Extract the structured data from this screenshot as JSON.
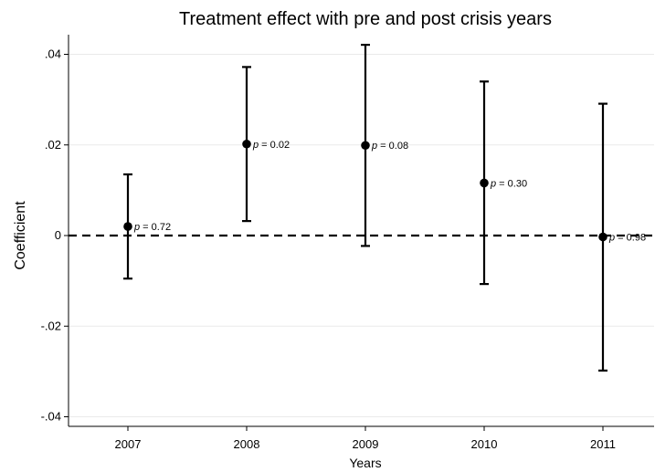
{
  "chart_data": {
    "type": "scatter",
    "title": "Treatment effect with pre and post crisis years",
    "xlabel": "Years",
    "ylabel": "Coefficient",
    "categories": [
      "2007",
      "2008",
      "2009",
      "2010",
      "2011"
    ],
    "ylim": [
      -0.042,
      0.044
    ],
    "yticks": [
      -0.04,
      -0.02,
      0,
      0.02,
      0.04
    ],
    "ytick_labels": [
      "-.04",
      "-.02",
      "0",
      ".02",
      ".04"
    ],
    "grid": true,
    "reference_line": {
      "y": 0,
      "style": "dashed"
    },
    "points": [
      {
        "x": "2007",
        "estimate": 0.002,
        "ci_low": -0.0095,
        "ci_high": 0.0135,
        "p_label": "= 0.72"
      },
      {
        "x": "2008",
        "estimate": 0.0202,
        "ci_low": 0.0032,
        "ci_high": 0.0372,
        "p_label": "= 0.02"
      },
      {
        "x": "2009",
        "estimate": 0.0199,
        "ci_low": -0.0023,
        "ci_high": 0.0421,
        "p_label": "= 0.08"
      },
      {
        "x": "2010",
        "estimate": 0.0116,
        "ci_low": -0.0107,
        "ci_high": 0.034,
        "p_label": "= 0.30"
      },
      {
        "x": "2011",
        "estimate": -0.0003,
        "ci_low": -0.0298,
        "ci_high": 0.0291,
        "p_label": "= 0.98"
      }
    ],
    "p_symbol": "p"
  }
}
